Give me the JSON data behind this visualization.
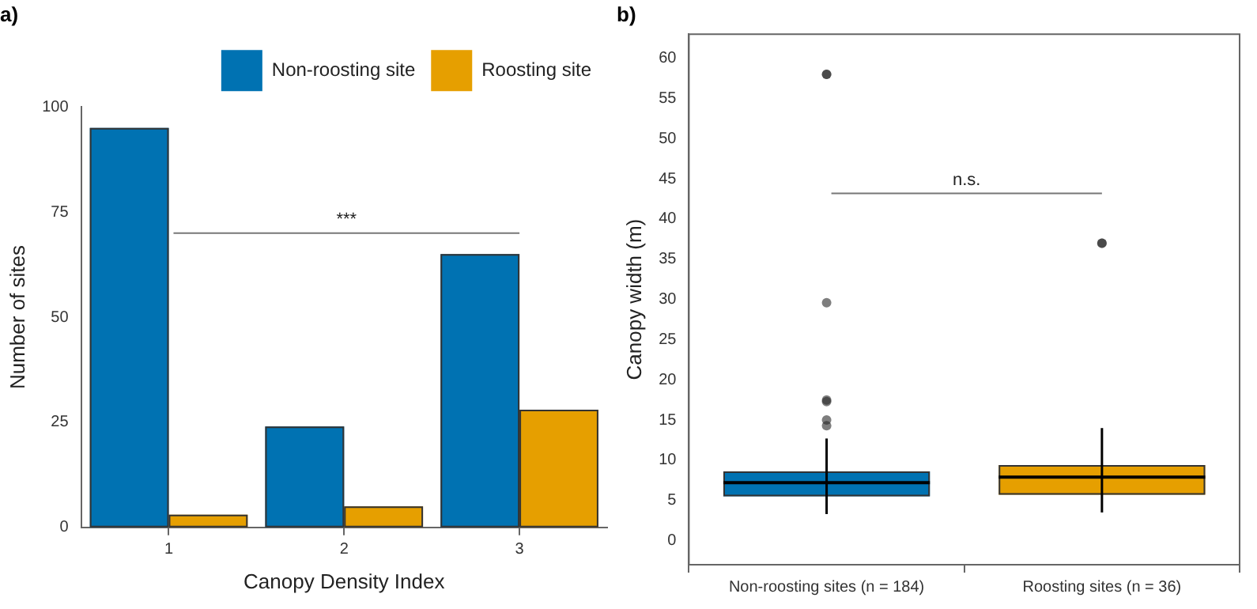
{
  "chart_data": [
    {
      "type": "bar",
      "title": "a)",
      "xlabel": "Canopy Density Index",
      "ylabel": "Number of sites",
      "categories": [
        "1",
        "2",
        "3"
      ],
      "series": [
        {
          "name": "Non-roosting site",
          "color": "#0072b2",
          "values": [
            95,
            24,
            65
          ]
        },
        {
          "name": "Roosting site",
          "color": "#e69f00",
          "values": [
            3,
            5,
            28
          ]
        }
      ],
      "ylim": [
        0,
        100
      ],
      "yticks": [
        0,
        25,
        50,
        75,
        100
      ],
      "legend": "top right",
      "annotations": [
        "***"
      ]
    },
    {
      "type": "box",
      "title": "b)",
      "ylabel": "Canopy width (m)",
      "categories": [
        "Non-roosting sites (n = 184)",
        "Roosting sites (n = 36)"
      ],
      "colors": [
        "#0072b2",
        "#e69f00"
      ],
      "boxes": [
        {
          "low": 3.3,
          "q1": 5.5,
          "median": 7.2,
          "q3": 8.6,
          "high": 12.7,
          "outliers": [
            58,
            58,
            29.6,
            17.5,
            17.3,
            15,
            14.3
          ]
        },
        {
          "low": 3.5,
          "q1": 5.7,
          "median": 7.9,
          "q3": 9.4,
          "high": 14,
          "outliers": [
            37,
            37
          ]
        }
      ],
      "ylim": [
        -3,
        63
      ],
      "yticks": [
        0,
        5,
        10,
        15,
        20,
        25,
        30,
        35,
        40,
        45,
        50,
        55,
        60
      ],
      "annotations": [
        "n.s."
      ]
    }
  ]
}
